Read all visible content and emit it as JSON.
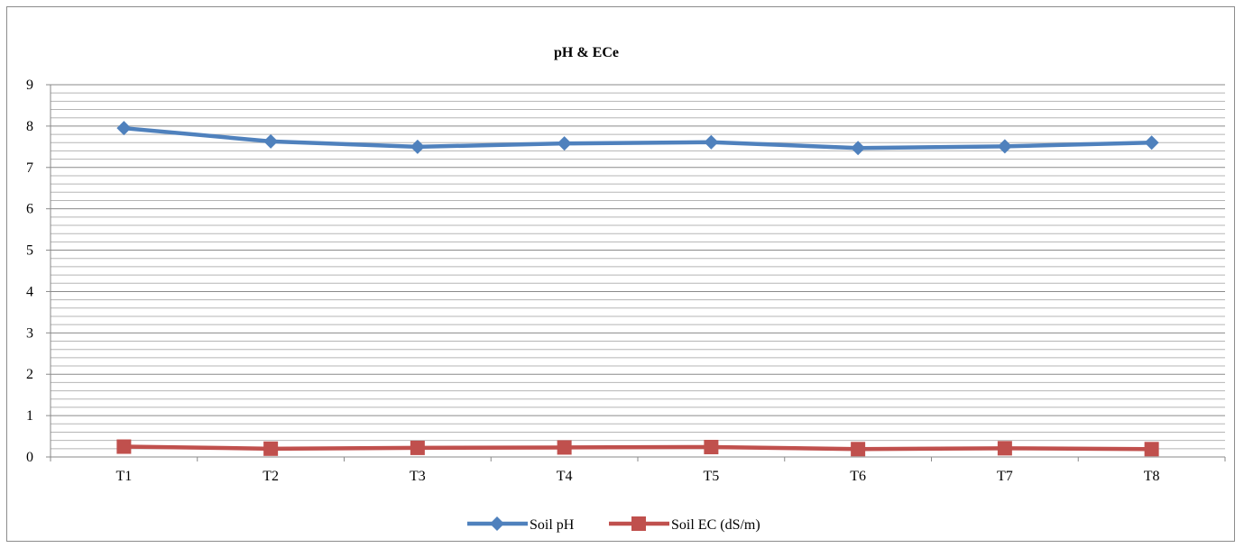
{
  "chart_data": {
    "type": "line",
    "title": "pH & ECe",
    "xlabel": "",
    "ylabel": "",
    "categories": [
      "T1",
      "T2",
      "T3",
      "T4",
      "T5",
      "T6",
      "T7",
      "T8"
    ],
    "ylim": [
      0,
      9
    ],
    "yticks": [
      "0",
      "1",
      "2",
      "3",
      "4",
      "5",
      "6",
      "7",
      "8",
      "9"
    ],
    "minor_grid_step": 0.2,
    "grid": true,
    "legend_position": "bottom",
    "series": [
      {
        "name": "Soil pH",
        "values": [
          7.95,
          7.63,
          7.5,
          7.58,
          7.61,
          7.47,
          7.51,
          7.6
        ],
        "color": "#4f81bd",
        "marker": "diamond"
      },
      {
        "name": "Soil EC (dS/m)",
        "values": [
          0.25,
          0.2,
          0.22,
          0.23,
          0.24,
          0.19,
          0.21,
          0.19
        ],
        "color": "#c0504d",
        "marker": "square"
      }
    ]
  }
}
